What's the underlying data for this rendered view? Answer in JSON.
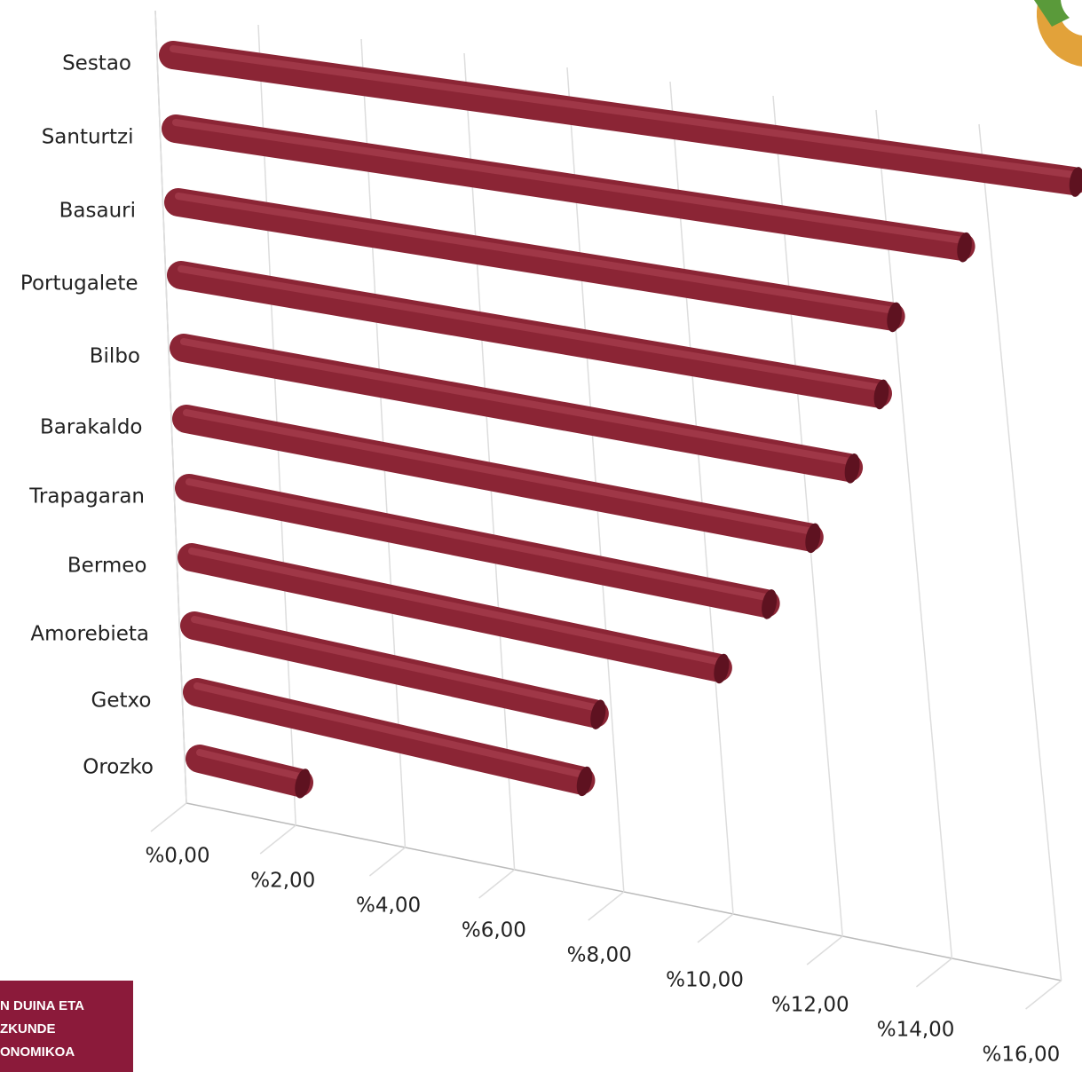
{
  "chart_data": {
    "type": "bar3d",
    "categories": [
      "Sestao",
      "Santurtzi",
      "Basauri",
      "Portugalete",
      "Bilbo",
      "Barakaldo",
      "Trapagaran",
      "Bermeo",
      "Amorebieta",
      "Getxo",
      "Orozko"
    ],
    "values": [
      15.6,
      13.8,
      12.7,
      12.6,
      12.2,
      11.6,
      10.9,
      10.1,
      7.8,
      7.6,
      2.0
    ],
    "color": "#8b2535",
    "xlim": [
      0,
      16
    ],
    "xticks": [
      {
        "value": 0,
        "label": "%0,00"
      },
      {
        "value": 2,
        "label": "%2,00"
      },
      {
        "value": 4,
        "label": "%4,00"
      },
      {
        "value": 6,
        "label": "%6,00"
      },
      {
        "value": 8,
        "label": "%8,00"
      },
      {
        "value": 10,
        "label": "%10,00"
      },
      {
        "value": 12,
        "label": "%12,00"
      },
      {
        "value": 14,
        "label": "%14,00"
      },
      {
        "value": 16,
        "label": "%16,00"
      }
    ],
    "grid": true
  },
  "logo": [
    "N DUINA ETA",
    "ZKUNDE",
    "ONOMIKOA"
  ]
}
